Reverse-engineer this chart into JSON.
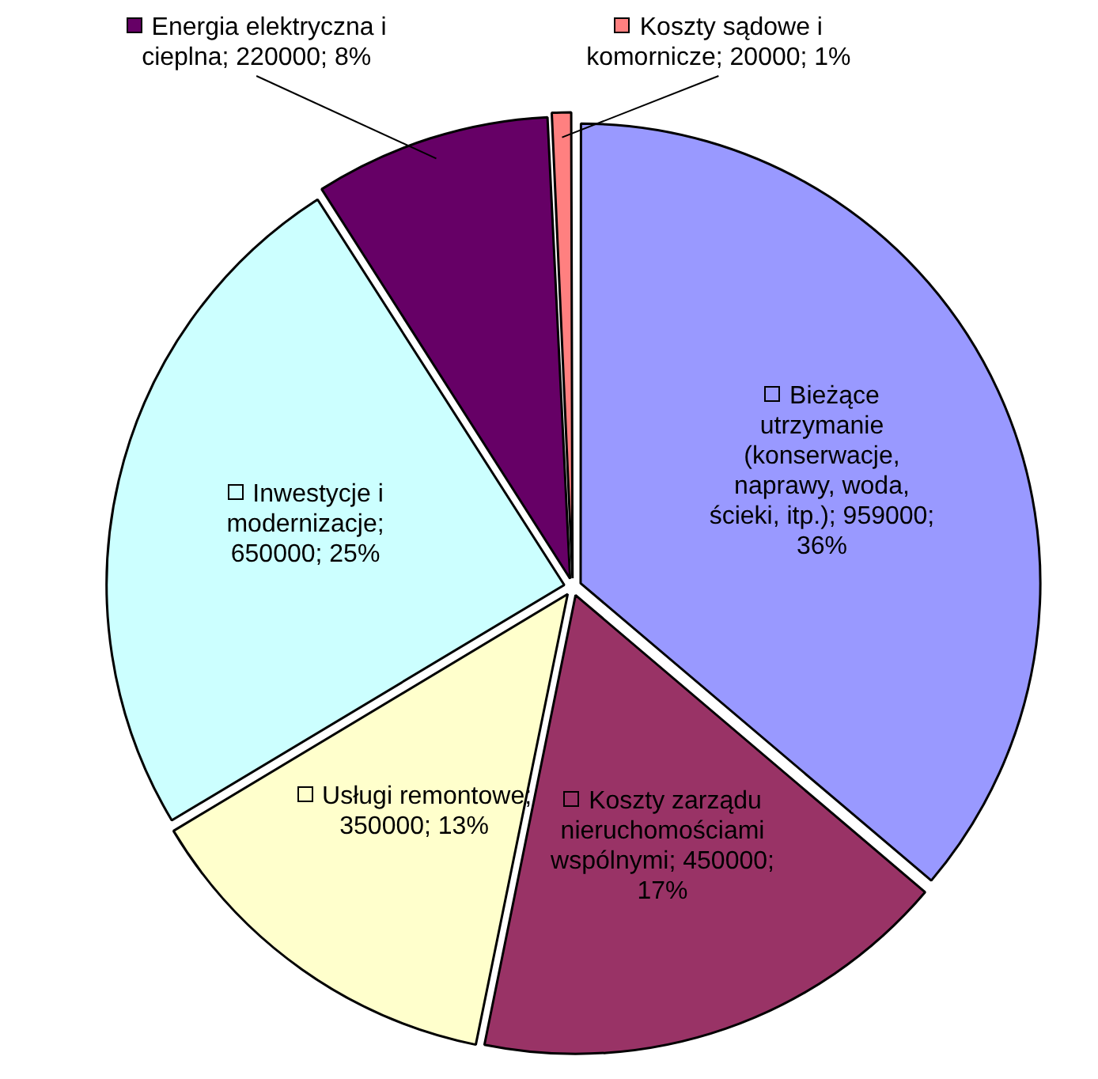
{
  "chart_data": {
    "type": "pie",
    "categories": [
      "Bieżące utrzymanie (konserwacje, naprawy, woda, ścieki, itp.)",
      "Koszty zarządu nieruchomościami wspólnymi",
      "Usługi remontowe",
      "Inwestycje i modernizacje",
      "Energia elektryczna i cieplna",
      "Koszty sądowe i komornicze"
    ],
    "values": [
      959000,
      450000,
      350000,
      650000,
      220000,
      20000
    ],
    "value_labels": [
      "; 959000; 36%",
      "; 450000; 17%",
      "; 350000; 13%",
      "; 650000; 25%",
      "; 220000; 8%",
      "; 20000; 1%"
    ],
    "colors": [
      "#9999ff",
      "#993366",
      "#ffffcc",
      "#ccffff",
      "#660066",
      "#ff8080"
    ],
    "legend": true
  }
}
